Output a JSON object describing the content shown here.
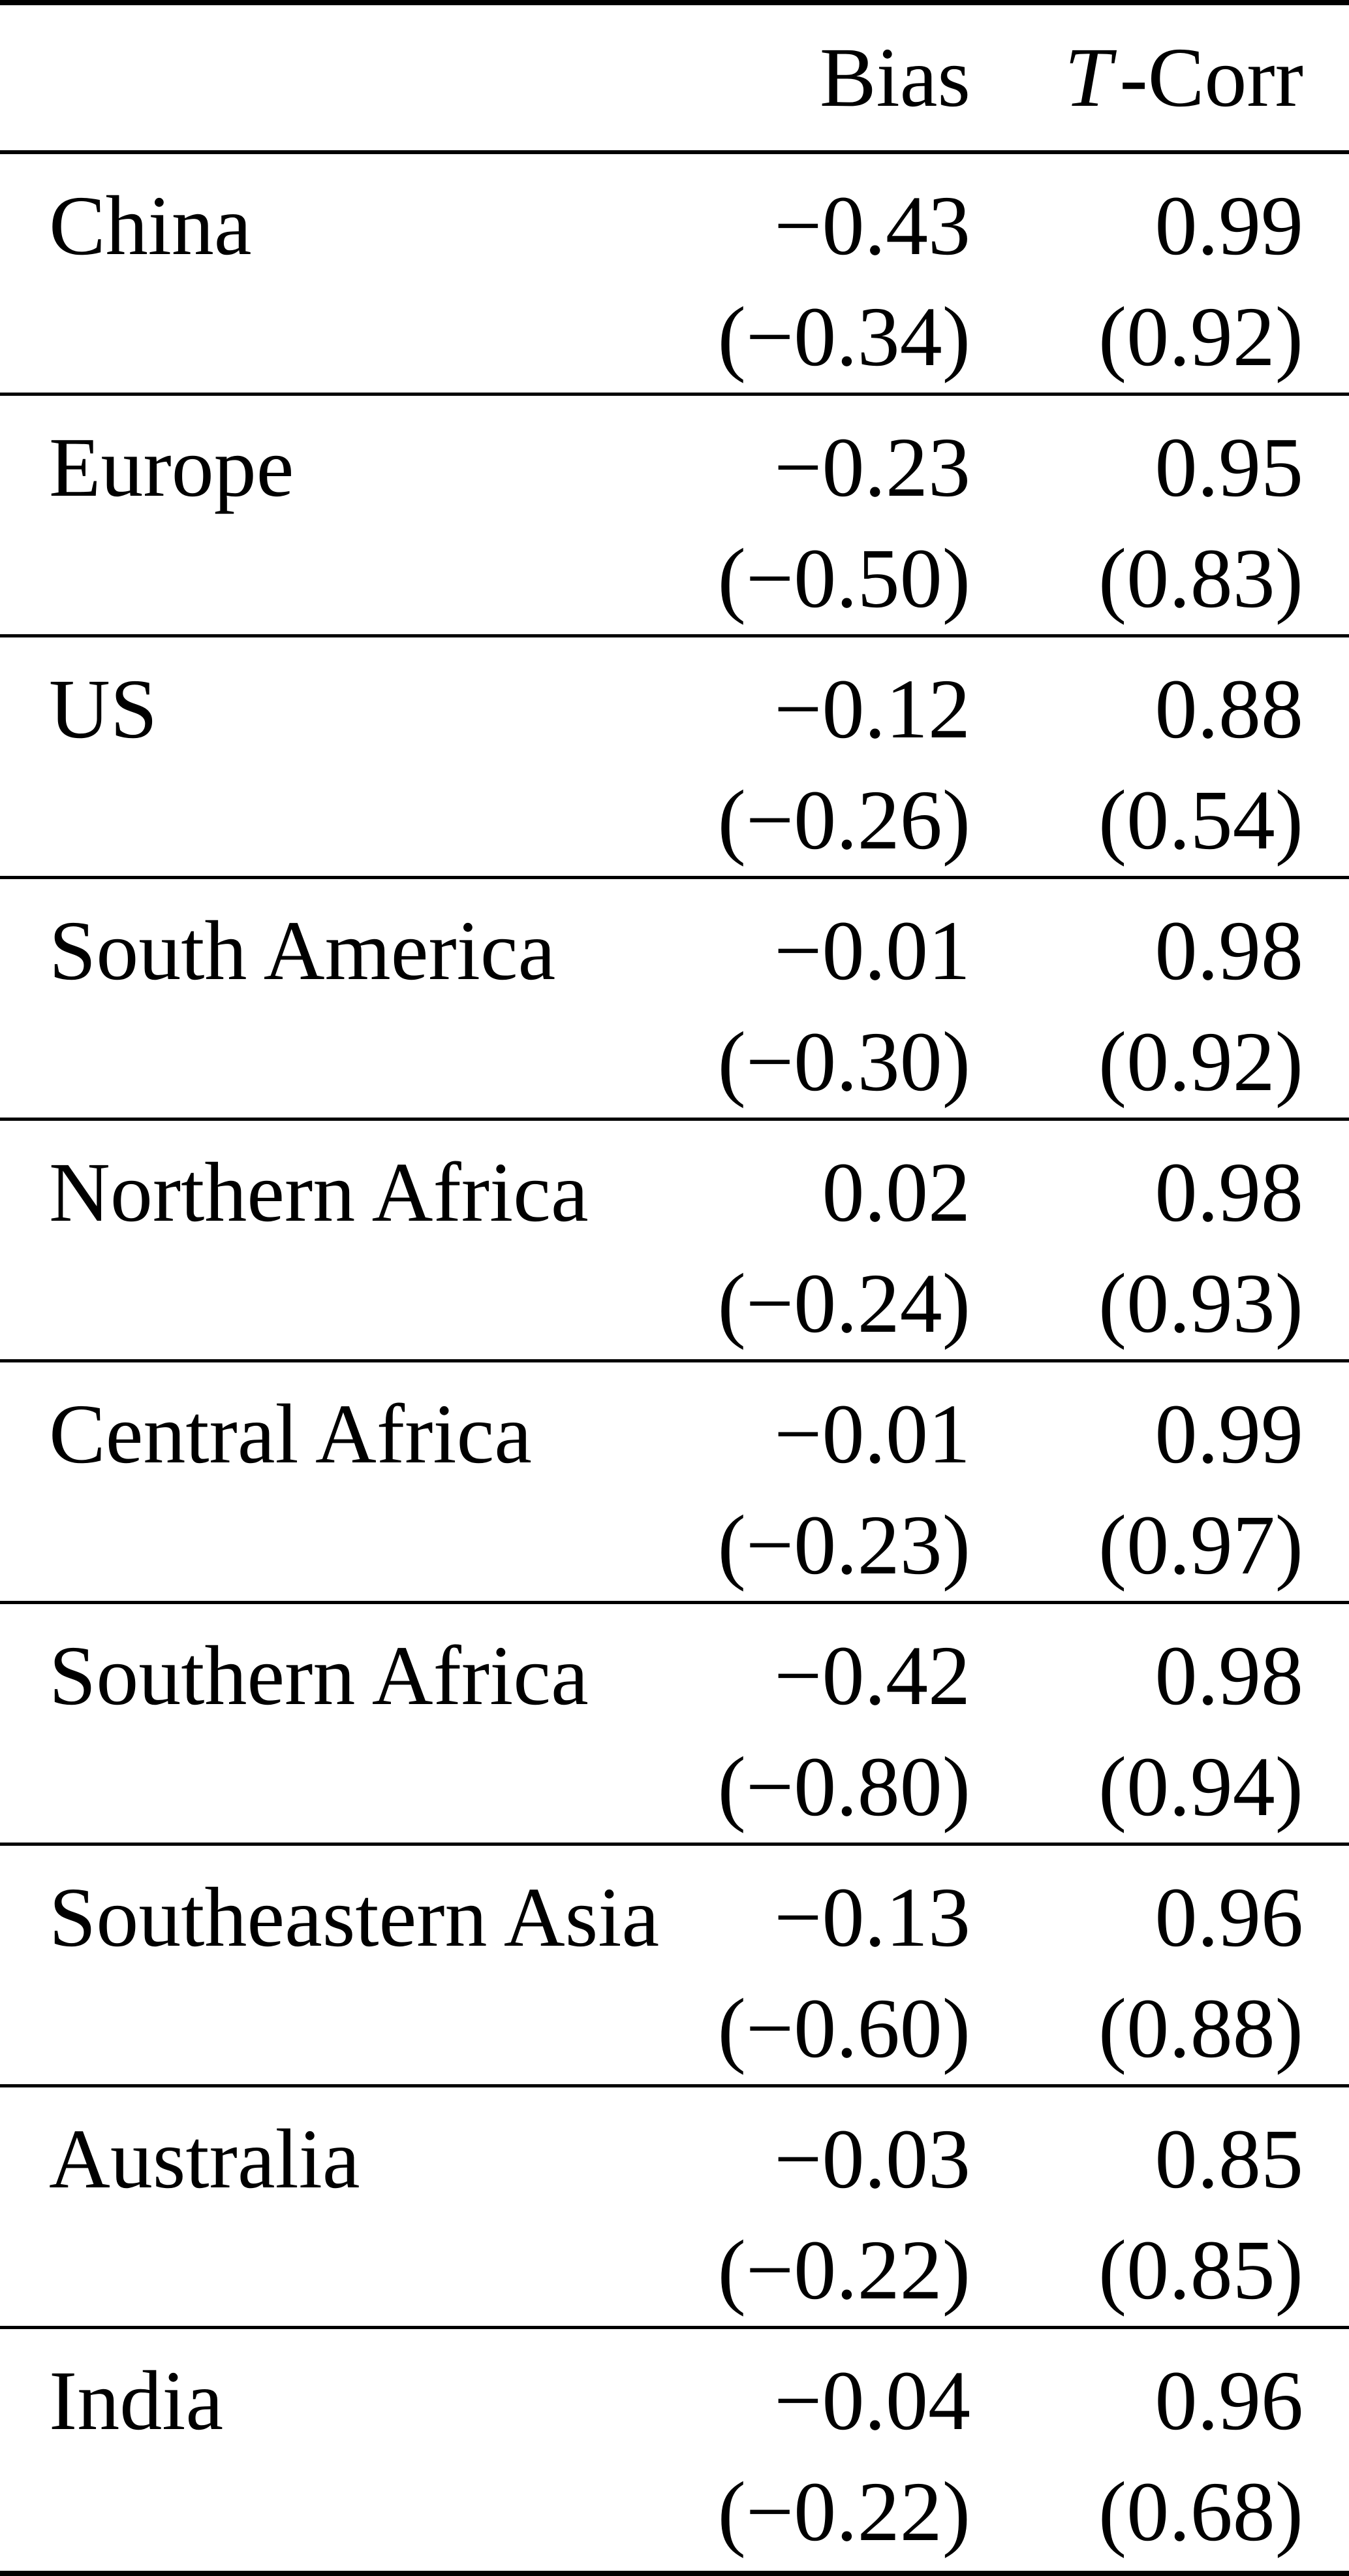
{
  "table": {
    "header": {
      "bias": "Bias",
      "tcorr_italic": "T",
      "tcorr_rest": "-Corr"
    },
    "rows": [
      {
        "region": "China",
        "bias": "−0.43",
        "bias_paren": "(−0.34)",
        "tcorr": "0.99",
        "tcorr_paren": "(0.92)"
      },
      {
        "region": "Europe",
        "bias": "−0.23",
        "bias_paren": "(−0.50)",
        "tcorr": "0.95",
        "tcorr_paren": "(0.83)"
      },
      {
        "region": "US",
        "bias": "−0.12",
        "bias_paren": "(−0.26)",
        "tcorr": "0.88",
        "tcorr_paren": "(0.54)"
      },
      {
        "region": "South America",
        "bias": "−0.01",
        "bias_paren": "(−0.30)",
        "tcorr": "0.98",
        "tcorr_paren": "(0.92)"
      },
      {
        "region": "Northern Africa",
        "bias": "0.02",
        "bias_paren": "(−0.24)",
        "tcorr": "0.98",
        "tcorr_paren": "(0.93)"
      },
      {
        "region": "Central Africa",
        "bias": "−0.01",
        "bias_paren": "(−0.23)",
        "tcorr": "0.99",
        "tcorr_paren": "(0.97)"
      },
      {
        "region": "Southern Africa",
        "bias": "−0.42",
        "bias_paren": "(−0.80)",
        "tcorr": "0.98",
        "tcorr_paren": "(0.94)"
      },
      {
        "region": "Southeastern Asia",
        "bias": "−0.13",
        "bias_paren": "(−0.60)",
        "tcorr": "0.96",
        "tcorr_paren": "(0.88)"
      },
      {
        "region": "Australia",
        "bias": "−0.03",
        "bias_paren": "(−0.22)",
        "tcorr": "0.85",
        "tcorr_paren": "(0.85)"
      },
      {
        "region": "India",
        "bias": "−0.04",
        "bias_paren": "(−0.22)",
        "tcorr": "0.96",
        "tcorr_paren": "(0.68)"
      }
    ]
  }
}
